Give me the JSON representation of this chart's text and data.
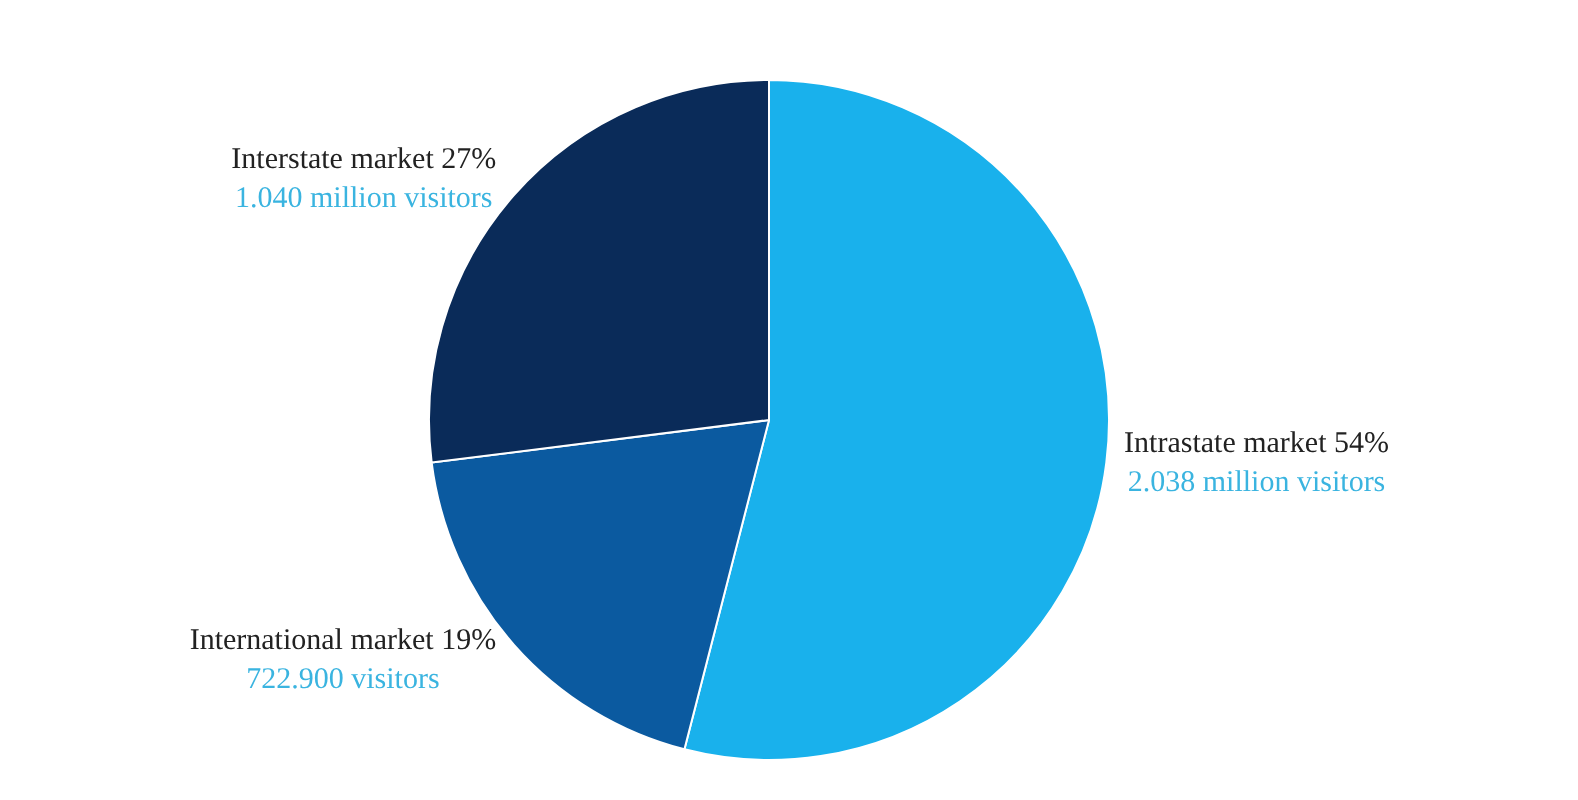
{
  "chart_data": {
    "type": "pie",
    "categories": [
      "Intrastate market",
      "International market",
      "Interstate market"
    ],
    "values": [
      54,
      19,
      27
    ],
    "value_labels": [
      "54%",
      "19%",
      "27%"
    ],
    "colors": [
      "#19b1ec",
      "#0b5aa0",
      "#0a2b59"
    ],
    "annotations": [
      "2.038 million visitors",
      "722.900 visitors",
      "1.040 million visitors"
    ],
    "legend": false
  }
}
